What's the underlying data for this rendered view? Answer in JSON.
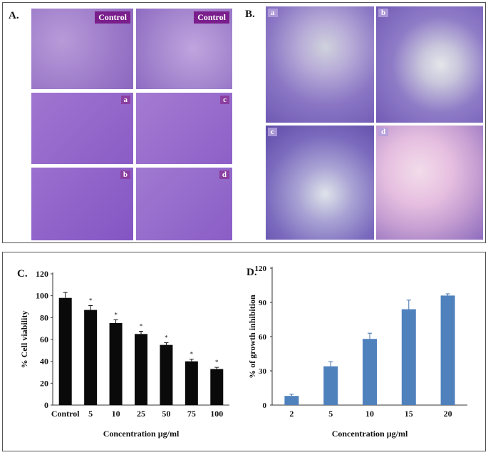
{
  "top_panel": {
    "labelA": "A.",
    "labelB": "B.",
    "tiles_a": [
      {
        "tag": "Control"
      },
      {
        "tag": "Control"
      },
      {
        "tag": "a"
      },
      {
        "tag": "c"
      },
      {
        "tag": "b"
      },
      {
        "tag": "d"
      }
    ],
    "tiles_b": [
      {
        "tag": "a"
      },
      {
        "tag": "b"
      },
      {
        "tag": "c"
      },
      {
        "tag": "d"
      }
    ]
  },
  "chart_data": [
    {
      "panel_label": "C.",
      "type": "bar",
      "categories": [
        "Control",
        "5",
        "10",
        "25",
        "50",
        "75",
        "100"
      ],
      "values": [
        98,
        87,
        75,
        65,
        55,
        40,
        33
      ],
      "errors": [
        5,
        4,
        3,
        2.5,
        2,
        2,
        1.5
      ],
      "significance": [
        "",
        "*",
        "*",
        "*",
        "*",
        "*",
        "*"
      ],
      "ylim": [
        0,
        120
      ],
      "yticks": [
        0,
        20,
        40,
        60,
        80,
        100,
        120
      ],
      "ylabel": "% Cell viability",
      "xlabel": "Concentration µg/ml",
      "color": "#0a0a0a"
    },
    {
      "panel_label": "D.",
      "type": "bar",
      "categories": [
        "2",
        "5",
        "10",
        "15",
        "20"
      ],
      "values": [
        8,
        34,
        58,
        84,
        96
      ],
      "errors": [
        1.5,
        4,
        5,
        8,
        1.5
      ],
      "ylim": [
        0,
        120
      ],
      "yticks": [
        0,
        30,
        60,
        90,
        120
      ],
      "ylabel": "% of growth inhibition",
      "xlabel": "Concentration µg/ml",
      "color": "#4f81bd"
    }
  ]
}
